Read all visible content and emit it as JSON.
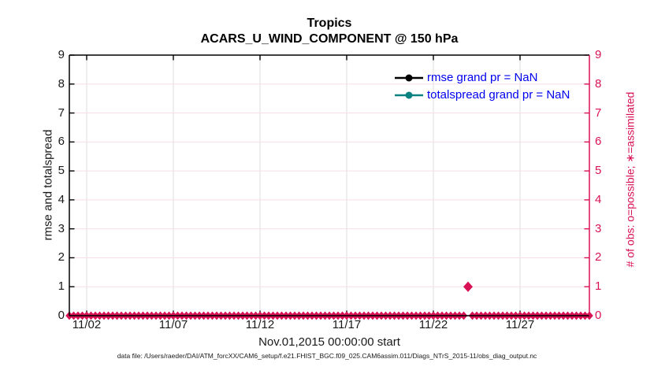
{
  "figure": {
    "footer": "data file: /Users/raeder/DAI/ATM_forcXX/CAM6_setup/f.e21.FHIST_BGC.f09_025.CAM6assim.011/Diags_NTrS_2015-11/obs_diag_output.nc"
  },
  "colors": {
    "crimson": "#d81254",
    "teal": "#0a8282",
    "legend_text_blue": "#0000ee",
    "grid_pink": "#f7dfe9",
    "grid_gray": "#dcdcdc",
    "axis_black": "#000000"
  },
  "chart_data": {
    "type": "scatter",
    "title": "Tropics",
    "subtitle": "ACARS_U_WIND_COMPONENT @ 150 hPa",
    "xlabel": "Nov.01,2015 00:00:00 start",
    "ylabel_left": "rmse and totalspread",
    "ylabel_right": "# of obs: o=possible; ∗=assimilated",
    "ylim": [
      0,
      9
    ],
    "yticks": [
      0,
      1,
      2,
      3,
      4,
      5,
      6,
      7,
      8,
      9
    ],
    "xlim_days_from_nov1": [
      0,
      30
    ],
    "xticks": [
      {
        "day": 1,
        "label": "11/02"
      },
      {
        "day": 6,
        "label": "11/07"
      },
      {
        "day": 11,
        "label": "11/12"
      },
      {
        "day": 16,
        "label": "11/17"
      },
      {
        "day": 21,
        "label": "11/22"
      },
      {
        "day": 26,
        "label": "11/27"
      }
    ],
    "grid": true,
    "legend_position": "top-right-inside",
    "legend": [
      {
        "label": "rmse grand pr = NaN",
        "color": "#000000",
        "marker": "circle"
      },
      {
        "label": "totalspread grand pr = NaN",
        "color": "#0a8282",
        "marker": "circle"
      }
    ],
    "series": [
      {
        "name": "rmse",
        "axis": "left",
        "color": "#000000",
        "grand_pr": "NaN",
        "points": "none plotted (all NaN)"
      },
      {
        "name": "totalspread",
        "axis": "left",
        "color": "#0a8282",
        "grand_pr": "NaN",
        "points": "none plotted (all NaN)"
      },
      {
        "name": "num_obs",
        "axis": "right",
        "color": "#d81254",
        "marker": "diamond",
        "sampling": {
          "start_day": 0,
          "end_day": 30,
          "step_day": 0.25,
          "default_value": 0
        },
        "exceptions": [
          {
            "day": 23,
            "value": 1
          }
        ]
      }
    ]
  }
}
